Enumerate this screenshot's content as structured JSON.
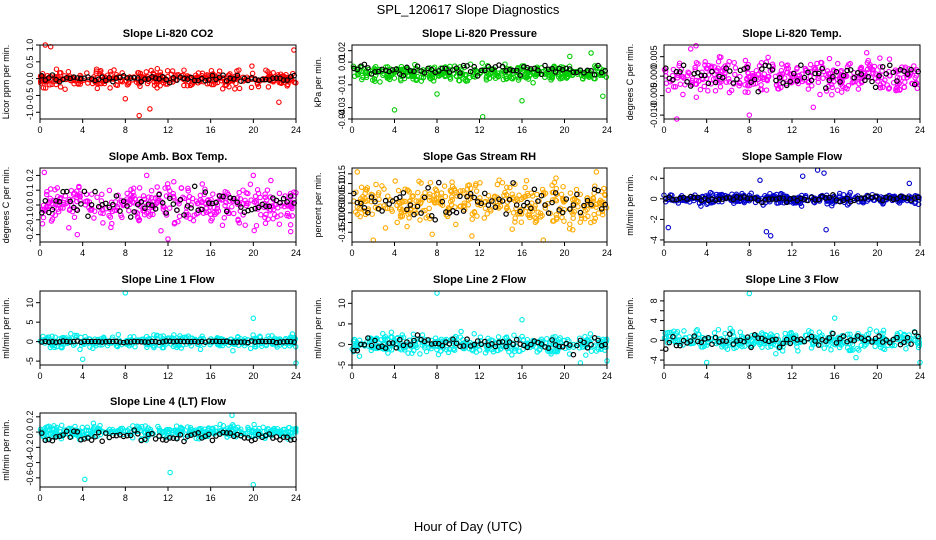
{
  "page": {
    "title": "SPL_120617  Slope Diagnostics",
    "xlabel": "Hour of Day (UTC)"
  },
  "chart_data": [
    {
      "type": "scatter",
      "title": "Slope Li-820 CO2",
      "ylabel": "Licor ppm per min.",
      "color": "#ff0000",
      "ylim": [
        -1.2,
        1.0
      ],
      "yticks": [
        -1.0,
        -0.5,
        0.0,
        0.5,
        1.0
      ],
      "yticklabels": [
        "-1.0",
        "-0.5",
        "0.0",
        "0.5",
        "1.0"
      ],
      "xlim": [
        0,
        24
      ],
      "xticks": [
        0,
        4,
        8,
        12,
        16,
        20,
        24
      ],
      "spread": 0.18,
      "black_spread": 0.07,
      "black_offset": 0.0,
      "outliers": [
        {
          "x": 0.5,
          "y": 1.0
        },
        {
          "x": 1.0,
          "y": 0.95
        },
        {
          "x": 9.3,
          "y": -1.1
        },
        {
          "x": 10.3,
          "y": -0.9
        },
        {
          "x": 8.0,
          "y": -0.6
        },
        {
          "x": 23.8,
          "y": 0.85
        },
        {
          "x": 22.4,
          "y": -0.7
        }
      ]
    },
    {
      "type": "scatter",
      "title": "Slope Li-820 Pressure",
      "ylabel": "kPa per min.",
      "color": "#00cc00",
      "ylim": [
        -0.04,
        0.025
      ],
      "yticks": [
        -0.04,
        -0.03,
        -0.01,
        0.01,
        0.02
      ],
      "yticklabels": [
        "-0.04",
        "-0.03",
        "-0.01",
        "0.01",
        "0.02"
      ],
      "xlim": [
        0,
        24
      ],
      "xticks": [
        0,
        4,
        8,
        12,
        16,
        20,
        24
      ],
      "spread": 0.005,
      "black_spread": 0.003,
      "black_offset": 0.003,
      "outliers": [
        {
          "x": 4.0,
          "y": -0.032
        },
        {
          "x": 12.3,
          "y": -0.038
        },
        {
          "x": 8.0,
          "y": -0.018
        },
        {
          "x": 20.5,
          "y": 0.015
        },
        {
          "x": 22.5,
          "y": 0.018
        },
        {
          "x": 23.6,
          "y": -0.02
        },
        {
          "x": 16.0,
          "y": -0.024
        }
      ]
    },
    {
      "type": "scatter",
      "title": "Slope Li-820 Temp.",
      "ylabel": "degrees C per min.",
      "color": "#ff00ff",
      "ylim": [
        -0.011,
        0.008
      ],
      "yticks": [
        -0.01,
        -0.005,
        0.0,
        0.005
      ],
      "yticklabels": [
        "-0.010",
        "-0.005",
        "0.000",
        "0.005"
      ],
      "xlim": [
        0,
        24
      ],
      "xticks": [
        0,
        4,
        8,
        12,
        16,
        20,
        24
      ],
      "spread": 0.003,
      "black_spread": 0.002,
      "black_offset": 0.0,
      "outliers": [
        {
          "x": 1.2,
          "y": -0.011
        },
        {
          "x": 3.0,
          "y": 0.0078
        },
        {
          "x": 2.5,
          "y": 0.007
        },
        {
          "x": 8.0,
          "y": -0.01
        },
        {
          "x": 14.0,
          "y": -0.008
        },
        {
          "x": 19.0,
          "y": 0.006
        }
      ]
    },
    {
      "type": "scatter",
      "title": "Slope Amb. Box Temp.",
      "ylabel": "degrees C per min.",
      "color": "#ff00ff",
      "ylim": [
        -0.25,
        0.25
      ],
      "yticks": [
        -0.2,
        -0.1,
        0.0,
        0.1,
        0.2
      ],
      "yticklabels": [
        "-0.2",
        "-0.1",
        "0.0",
        "0.1",
        "0.2"
      ],
      "xlim": [
        0,
        24
      ],
      "xticks": [
        0,
        4,
        8,
        12,
        16,
        20,
        24
      ],
      "spread": 0.09,
      "black_spread": 0.06,
      "black_offset": 0.0,
      "outliers": [
        {
          "x": 0.4,
          "y": 0.22
        },
        {
          "x": 3.5,
          "y": -0.2
        },
        {
          "x": 12.0,
          "y": -0.23
        },
        {
          "x": 10.0,
          "y": 0.2
        },
        {
          "x": 20.0,
          "y": 0.2
        },
        {
          "x": 23.5,
          "y": -0.18
        }
      ]
    },
    {
      "type": "scatter",
      "title": "Slope Gas Stream RH",
      "ylabel": "percent per min.",
      "color": "#ffaa00",
      "ylim": [
        -0.2,
        0.18
      ],
      "yticks": [
        -0.15,
        -0.1,
        -0.05,
        0.0,
        0.05,
        0.1,
        0.15
      ],
      "yticklabels": [
        "-0.15",
        "-0.10",
        "-0.05",
        "0.00",
        "0.05",
        "0.10",
        "0.15"
      ],
      "xlim": [
        0,
        24
      ],
      "xticks": [
        0,
        4,
        8,
        12,
        16,
        20,
        24
      ],
      "spread": 0.08,
      "black_spread": 0.06,
      "black_offset": 0.0,
      "outliers": [
        {
          "x": 0.5,
          "y": 0.16
        },
        {
          "x": 2.0,
          "y": -0.19
        },
        {
          "x": 23.0,
          "y": 0.16
        },
        {
          "x": 18.0,
          "y": -0.19
        }
      ]
    },
    {
      "type": "scatter",
      "title": "Slope Sample Flow",
      "ylabel": "ml/min per min.",
      "color": "#0000cc",
      "ylim": [
        -4.2,
        3.0
      ],
      "yticks": [
        -4,
        -2,
        0,
        2
      ],
      "yticklabels": [
        "-4",
        "-2",
        "0",
        "2"
      ],
      "xlim": [
        0,
        24
      ],
      "xticks": [
        0,
        4,
        8,
        12,
        16,
        20,
        24
      ],
      "spread": 0.35,
      "black_spread": 0.2,
      "black_offset": 0.0,
      "outliers": [
        {
          "x": 9.6,
          "y": -3.2
        },
        {
          "x": 10.0,
          "y": -3.6
        },
        {
          "x": 9.0,
          "y": 1.8
        },
        {
          "x": 13.0,
          "y": 2.2
        },
        {
          "x": 14.4,
          "y": 2.8
        },
        {
          "x": 15.0,
          "y": 2.5
        },
        {
          "x": 15.2,
          "y": -3.0
        },
        {
          "x": 0.4,
          "y": -2.8
        },
        {
          "x": 23.0,
          "y": 1.5
        }
      ]
    },
    {
      "type": "scatter",
      "title": "Slope Line 1 Flow",
      "ylabel": "ml/min per min.",
      "color": "#00eeee",
      "ylim": [
        -6,
        13
      ],
      "yticks": [
        -5,
        0,
        5,
        10
      ],
      "yticklabels": [
        "-5",
        "0",
        "5",
        "10"
      ],
      "xlim": [
        0,
        24
      ],
      "xticks": [
        0,
        4,
        8,
        12,
        16,
        20,
        24
      ],
      "spread": 1.2,
      "black_spread": 0.15,
      "black_offset": 0.0,
      "outliers": [
        {
          "x": 8.0,
          "y": 12.5
        },
        {
          "x": 20.0,
          "y": 6.0
        },
        {
          "x": 24.0,
          "y": -5.5
        },
        {
          "x": 4.0,
          "y": -4.5
        }
      ]
    },
    {
      "type": "scatter",
      "title": "Slope Line 2 Flow",
      "ylabel": "ml/min per min.",
      "color": "#00eeee",
      "ylim": [
        -5,
        13
      ],
      "yticks": [
        -5,
        0,
        5,
        10
      ],
      "yticklabels": [
        "-5",
        "0",
        "5",
        "10"
      ],
      "xlim": [
        0,
        24
      ],
      "xticks": [
        0,
        4,
        8,
        12,
        16,
        20,
        24
      ],
      "spread": 1.6,
      "black_spread": 1.2,
      "black_offset": 0.0,
      "outliers": [
        {
          "x": 8.0,
          "y": 12.5
        },
        {
          "x": 16.0,
          "y": 6.0
        },
        {
          "x": 21.5,
          "y": -4.5
        },
        {
          "x": 24.0,
          "y": -4.0
        }
      ]
    },
    {
      "type": "scatter",
      "title": "Slope Line 3 Flow",
      "ylabel": "ml/min per min.",
      "color": "#00eeee",
      "ylim": [
        -5,
        10
      ],
      "yticks": [
        -4,
        -2,
        0,
        2,
        4,
        6,
        8
      ],
      "yticklabels": [
        "-4",
        "",
        "0",
        "",
        "4",
        "",
        "8"
      ],
      "xlim": [
        0,
        24
      ],
      "xticks": [
        0,
        4,
        8,
        12,
        16,
        20,
        24
      ],
      "spread": 1.3,
      "black_spread": 0.9,
      "black_offset": 0.0,
      "outliers": [
        {
          "x": 8.0,
          "y": 9.5
        },
        {
          "x": 4.0,
          "y": -4.5
        },
        {
          "x": 24.0,
          "y": -4.5
        },
        {
          "x": 16.0,
          "y": 4.5
        },
        {
          "x": 18.0,
          "y": -3.5
        }
      ]
    },
    {
      "type": "scatter",
      "title": "Slope Line 4 (LT) Flow",
      "ylabel": "ml/min per min.",
      "color": "#00eeee",
      "ylim": [
        -0.72,
        0.25
      ],
      "yticks": [
        -0.6,
        -0.4,
        -0.2,
        0.0,
        0.2
      ],
      "yticklabels": [
        "-0.6",
        "-0.4",
        "-0.2",
        "0.0",
        "0.2"
      ],
      "xlim": [
        0,
        24
      ],
      "xticks": [
        0,
        4,
        8,
        12,
        16,
        20,
        24
      ],
      "spread": 0.06,
      "black_spread": 0.05,
      "black_offset": -0.06,
      "outliers": [
        {
          "x": 4.2,
          "y": -0.62
        },
        {
          "x": 12.2,
          "y": -0.53
        },
        {
          "x": 20.0,
          "y": -0.69
        },
        {
          "x": 18.0,
          "y": 0.22
        }
      ]
    }
  ]
}
